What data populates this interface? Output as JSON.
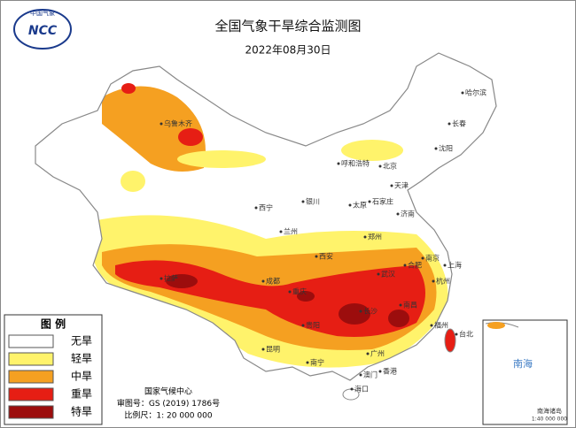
{
  "title": "全国气象干旱综合监测图",
  "date": "2022年08月30日",
  "logo": {
    "text": "NCC",
    "ring": "中国气象"
  },
  "legend": {
    "title": "图 例",
    "items": [
      {
        "label": "无旱",
        "color": "#ffffff"
      },
      {
        "label": "轻旱",
        "color": "#fff36b"
      },
      {
        "label": "中旱",
        "color": "#f5a021"
      },
      {
        "label": "重旱",
        "color": "#e61e14"
      },
      {
        "label": "特旱",
        "color": "#9c0d0d"
      }
    ]
  },
  "footer": [
    "国家气候中心",
    "审图号：GS (2019) 1786号",
    "比例尺：1: 20 000 000"
  ],
  "inset": {
    "sea": "南海",
    "caption": "南海诸岛",
    "scale": "1:40 000 000"
  },
  "cities": [
    "哈尔滨",
    "长春",
    "沈阳",
    "北京",
    "天津",
    "石家庄",
    "太原",
    "济南",
    "呼和浩特",
    "银川",
    "西宁",
    "兰州",
    "郑州",
    "西安",
    "合肥",
    "南京",
    "上海",
    "杭州",
    "武汉",
    "成都",
    "重庆",
    "长沙",
    "南昌",
    "福州",
    "贵阳",
    "昆明",
    "南宁",
    "广州",
    "香港",
    "澳门",
    "海口",
    "台北",
    "拉萨",
    "乌鲁木齐"
  ]
}
